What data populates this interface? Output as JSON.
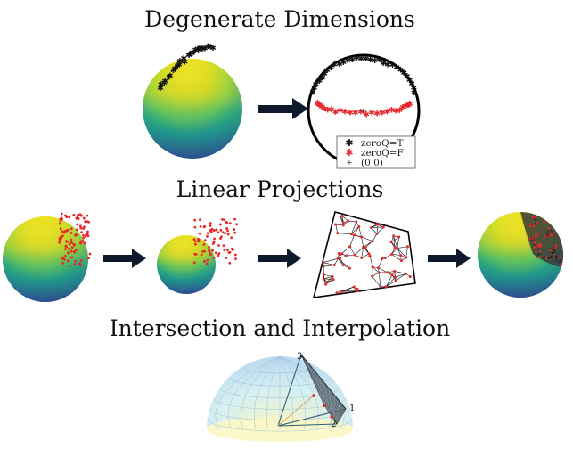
{
  "sections": {
    "degenerate": {
      "title": "Degenerate Dimensions"
    },
    "linear": {
      "title": "Linear Projections"
    },
    "intersection": {
      "title": "Intersection and Interpolation"
    }
  },
  "legend": {
    "items": [
      {
        "symbol": "*",
        "label": "zeroQ=T",
        "color": "#111111"
      },
      {
        "symbol": "*",
        "label": "zeroQ=F",
        "color": "#e8262a"
      },
      {
        "symbol": "+",
        "label": "(0,0)",
        "color": "#111111"
      }
    ]
  },
  "dome_labels": {
    "vertex_top": "3",
    "vertex_right": "1",
    "vertex_bottom": "2"
  },
  "colors": {
    "sphere_top": "#fde725",
    "sphere_mid": "#21a08a",
    "sphere_bottom": "#2b3a8c",
    "red_points": "#e8262a",
    "black_points": "#111111",
    "arrow": "#0e1a2b",
    "dome": "#bfe3f2"
  }
}
